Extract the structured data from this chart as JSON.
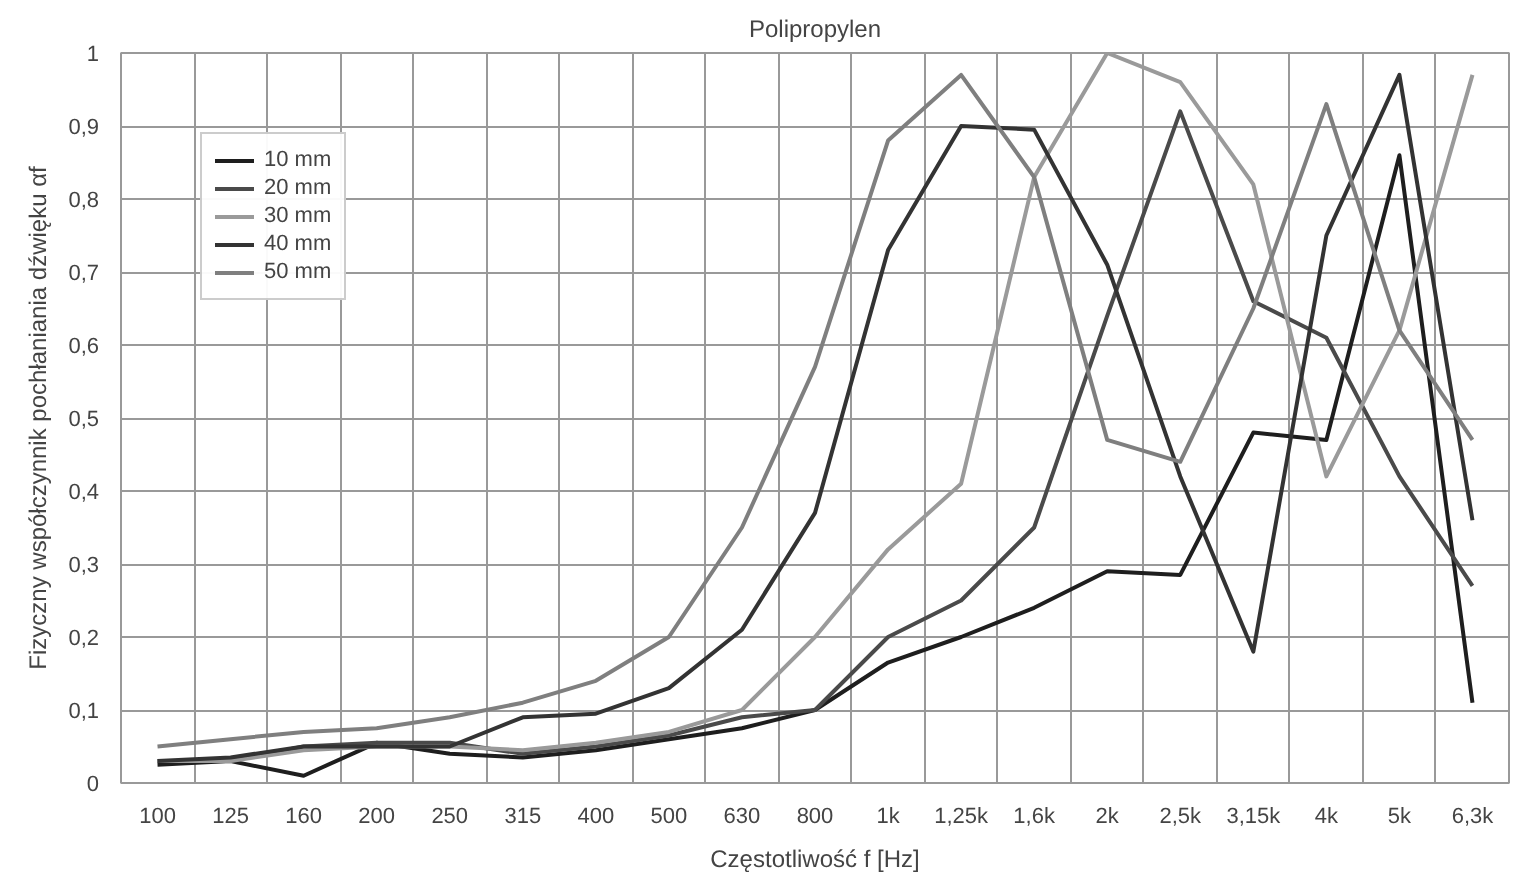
{
  "chart_data": {
    "type": "line",
    "title": "Polipropylen",
    "xlabel": "Częstotliwość f [Hz]",
    "ylabel": "Fizyczny współczynnik pochłaniania dźwięku αf",
    "categories": [
      "100",
      "125",
      "160",
      "200",
      "250",
      "315",
      "400",
      "500",
      "630",
      "800",
      "1k",
      "1,25k",
      "1,6k",
      "2k",
      "2,5k",
      "3,15k",
      "4k",
      "5k",
      "6,3k"
    ],
    "ylim": [
      0,
      1
    ],
    "yticks": [
      0,
      {
        "value": 0.1,
        "label": "0,1"
      },
      {
        "value": 0.2,
        "label": "0,2"
      },
      {
        "value": 0.3,
        "label": "0,3"
      },
      {
        "value": 0.4,
        "label": "0,4"
      },
      {
        "value": 0.5,
        "label": "0,5"
      },
      {
        "value": 0.6,
        "label": "0,6"
      },
      {
        "value": 0.7,
        "label": "0,7"
      },
      {
        "value": 0.8,
        "label": "0,8"
      },
      {
        "value": 0.9,
        "label": "0,9"
      },
      1
    ],
    "grid": true,
    "legend": "top left",
    "marker": "none",
    "line_style": "solid",
    "series": [
      {
        "name": "10 mm",
        "color": "#1e1e1e",
        "values": [
          0.025,
          0.03,
          0.01,
          0.055,
          0.04,
          0.035,
          0.045,
          0.06,
          0.075,
          0.1,
          0.165,
          0.2,
          0.24,
          0.29,
          0.285,
          0.48,
          0.47,
          0.86,
          0.11
        ]
      },
      {
        "name": "20 mm",
        "color": "#4a4a4a",
        "values": [
          0.03,
          0.03,
          0.05,
          0.055,
          0.055,
          0.04,
          0.05,
          0.065,
          0.09,
          0.1,
          0.2,
          0.25,
          0.35,
          0.64,
          0.92,
          0.66,
          0.61,
          0.42,
          0.27
        ]
      },
      {
        "name": "30 mm",
        "color": "#9a9a9a",
        "values": [
          0.03,
          0.03,
          0.045,
          0.05,
          0.05,
          0.045,
          0.055,
          0.07,
          0.1,
          0.2,
          0.32,
          0.41,
          0.83,
          1.0,
          0.96,
          0.82,
          0.42,
          0.62,
          0.97
        ]
      },
      {
        "name": "40 mm",
        "color": "#333333",
        "values": [
          0.03,
          0.035,
          0.05,
          0.05,
          0.05,
          0.09,
          0.095,
          0.13,
          0.21,
          0.37,
          0.73,
          0.9,
          0.895,
          0.71,
          0.42,
          0.18,
          0.75,
          0.97,
          0.36
        ]
      },
      {
        "name": "50 mm",
        "color": "#7f7f7f",
        "values": [
          0.05,
          0.06,
          0.07,
          0.075,
          0.09,
          0.11,
          0.14,
          0.2,
          0.35,
          0.57,
          0.88,
          0.97,
          0.83,
          0.47,
          0.44,
          0.65,
          0.93,
          0.62,
          0.47
        ]
      }
    ]
  }
}
